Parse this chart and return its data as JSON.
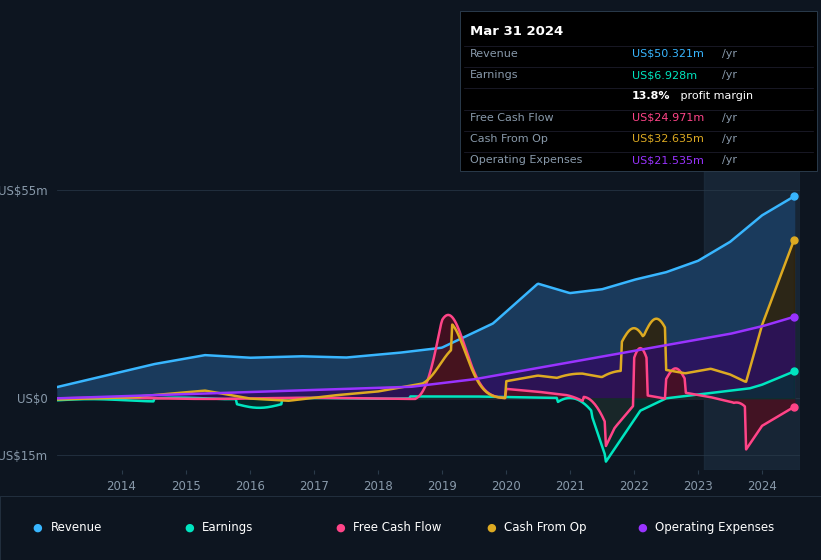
{
  "bg_color": "#0d1520",
  "plot_bg_color": "#0d1520",
  "grid_color": "#2a3a4a",
  "text_color": "#8899aa",
  "title_color": "#ffffff",
  "ylim": [
    -19,
    60
  ],
  "yticks": [
    -15,
    0,
    55
  ],
  "ytick_labels": [
    "-US$15m",
    "US$0",
    "US$55m"
  ],
  "xlim": [
    2013.0,
    2024.6
  ],
  "xticks": [
    2014,
    2015,
    2016,
    2017,
    2018,
    2019,
    2020,
    2021,
    2022,
    2023,
    2024
  ],
  "series": {
    "revenue": {
      "color": "#38b6ff",
      "fill_color": "#1a3a5c",
      "label": "Revenue"
    },
    "earnings": {
      "color": "#00e5c0",
      "fill_color": "#003830",
      "label": "Earnings"
    },
    "free_cash_flow": {
      "color": "#ff4488",
      "fill_color": "#4a1020",
      "label": "Free Cash Flow"
    },
    "cash_from_op": {
      "color": "#ddaa22",
      "fill_color": "#332000",
      "label": "Cash From Op"
    },
    "operating_expenses": {
      "color": "#9933ff",
      "fill_color": "#2d1060",
      "label": "Operating Expenses"
    }
  },
  "info_box": {
    "date": "Mar 31 2024",
    "revenue_val": "US$50.321m",
    "earnings_val": "US$6.928m",
    "profit_margin": "13.8%",
    "fcf_val": "US$24.971m",
    "cashfromop_val": "US$32.635m",
    "opex_val": "US$21.535m"
  },
  "legend": [
    {
      "label": "Revenue",
      "color": "#38b6ff"
    },
    {
      "label": "Earnings",
      "color": "#00e5c0"
    },
    {
      "label": "Free Cash Flow",
      "color": "#ff4488"
    },
    {
      "label": "Cash From Op",
      "color": "#ddaa22"
    },
    {
      "label": "Operating Expenses",
      "color": "#9933ff"
    }
  ],
  "highlight_start": 2023.1,
  "highlight_color": "#1a2a3a"
}
